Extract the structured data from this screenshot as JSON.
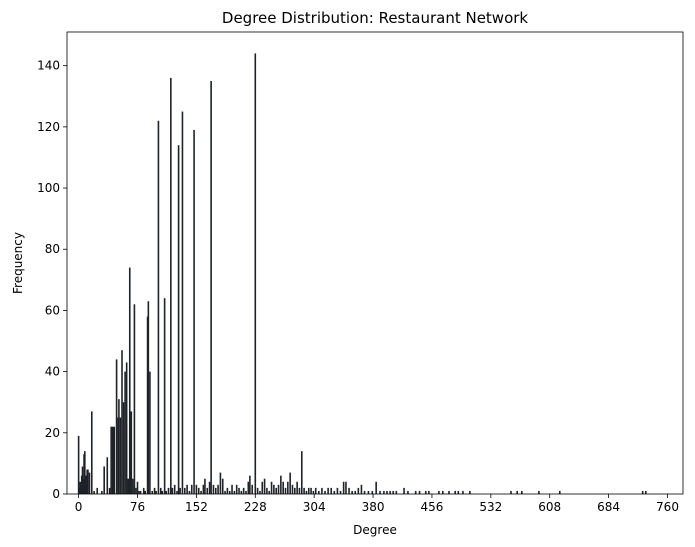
{
  "chart_data": {
    "type": "bar",
    "title": "Degree Distribution: Restaurant Network",
    "xlabel": "Degree",
    "ylabel": "Frequency",
    "xlim": [
      -15,
      780
    ],
    "ylim": [
      0,
      151
    ],
    "x_ticks": [
      0,
      76,
      152,
      228,
      304,
      380,
      456,
      532,
      608,
      684,
      760
    ],
    "y_ticks": [
      0,
      20,
      40,
      60,
      80,
      100,
      120,
      140
    ],
    "grid": false,
    "legend": "none",
    "bar_color": "#1f2328",
    "points": [
      {
        "x": 0,
        "y": 19
      },
      {
        "x": 1,
        "y": 2
      },
      {
        "x": 2,
        "y": 4
      },
      {
        "x": 3,
        "y": 3
      },
      {
        "x": 4,
        "y": 6
      },
      {
        "x": 5,
        "y": 9
      },
      {
        "x": 6,
        "y": 5
      },
      {
        "x": 7,
        "y": 13
      },
      {
        "x": 8,
        "y": 14
      },
      {
        "x": 9,
        "y": 6
      },
      {
        "x": 10,
        "y": 6
      },
      {
        "x": 11,
        "y": 8
      },
      {
        "x": 12,
        "y": 8
      },
      {
        "x": 14,
        "y": 7
      },
      {
        "x": 17,
        "y": 27
      },
      {
        "x": 20,
        "y": 1
      },
      {
        "x": 24,
        "y": 2
      },
      {
        "x": 30,
        "y": 1
      },
      {
        "x": 33,
        "y": 9
      },
      {
        "x": 37,
        "y": 12
      },
      {
        "x": 40,
        "y": 2
      },
      {
        "x": 42,
        "y": 22
      },
      {
        "x": 44,
        "y": 22
      },
      {
        "x": 46,
        "y": 22
      },
      {
        "x": 49,
        "y": 44
      },
      {
        "x": 51,
        "y": 25
      },
      {
        "x": 52,
        "y": 31
      },
      {
        "x": 54,
        "y": 25
      },
      {
        "x": 56,
        "y": 47
      },
      {
        "x": 58,
        "y": 30
      },
      {
        "x": 60,
        "y": 40
      },
      {
        "x": 62,
        "y": 43
      },
      {
        "x": 64,
        "y": 5
      },
      {
        "x": 66,
        "y": 74
      },
      {
        "x": 68,
        "y": 27
      },
      {
        "x": 70,
        "y": 5
      },
      {
        "x": 72,
        "y": 62
      },
      {
        "x": 74,
        "y": 2
      },
      {
        "x": 76,
        "y": 4
      },
      {
        "x": 78,
        "y": 1
      },
      {
        "x": 80,
        "y": 1
      },
      {
        "x": 84,
        "y": 2
      },
      {
        "x": 86,
        "y": 1
      },
      {
        "x": 89,
        "y": 58
      },
      {
        "x": 90,
        "y": 63
      },
      {
        "x": 92,
        "y": 40
      },
      {
        "x": 95,
        "y": 1
      },
      {
        "x": 98,
        "y": 2
      },
      {
        "x": 100,
        "y": 1
      },
      {
        "x": 103,
        "y": 122
      },
      {
        "x": 106,
        "y": 2
      },
      {
        "x": 108,
        "y": 1
      },
      {
        "x": 111,
        "y": 64
      },
      {
        "x": 113,
        "y": 1
      },
      {
        "x": 116,
        "y": 2
      },
      {
        "x": 119,
        "y": 136
      },
      {
        "x": 121,
        "y": 2
      },
      {
        "x": 124,
        "y": 3
      },
      {
        "x": 127,
        "y": 1
      },
      {
        "x": 129,
        "y": 114
      },
      {
        "x": 131,
        "y": 2
      },
      {
        "x": 134,
        "y": 125
      },
      {
        "x": 137,
        "y": 2
      },
      {
        "x": 140,
        "y": 3
      },
      {
        "x": 143,
        "y": 1
      },
      {
        "x": 146,
        "y": 3
      },
      {
        "x": 149,
        "y": 119
      },
      {
        "x": 152,
        "y": 3
      },
      {
        "x": 155,
        "y": 2
      },
      {
        "x": 158,
        "y": 1
      },
      {
        "x": 161,
        "y": 3
      },
      {
        "x": 163,
        "y": 5
      },
      {
        "x": 166,
        "y": 2
      },
      {
        "x": 169,
        "y": 4
      },
      {
        "x": 171,
        "y": 135
      },
      {
        "x": 174,
        "y": 3
      },
      {
        "x": 177,
        "y": 2
      },
      {
        "x": 180,
        "y": 3
      },
      {
        "x": 183,
        "y": 7
      },
      {
        "x": 186,
        "y": 5
      },
      {
        "x": 189,
        "y": 1
      },
      {
        "x": 192,
        "y": 2
      },
      {
        "x": 195,
        "y": 1
      },
      {
        "x": 198,
        "y": 3
      },
      {
        "x": 201,
        "y": 1
      },
      {
        "x": 204,
        "y": 3
      },
      {
        "x": 207,
        "y": 2
      },
      {
        "x": 210,
        "y": 1
      },
      {
        "x": 213,
        "y": 2
      },
      {
        "x": 216,
        "y": 1
      },
      {
        "x": 219,
        "y": 4
      },
      {
        "x": 221,
        "y": 6
      },
      {
        "x": 224,
        "y": 3
      },
      {
        "x": 228,
        "y": 144
      },
      {
        "x": 231,
        "y": 2
      },
      {
        "x": 234,
        "y": 1
      },
      {
        "x": 237,
        "y": 4
      },
      {
        "x": 240,
        "y": 5
      },
      {
        "x": 243,
        "y": 2
      },
      {
        "x": 246,
        "y": 1
      },
      {
        "x": 249,
        "y": 4
      },
      {
        "x": 252,
        "y": 3
      },
      {
        "x": 255,
        "y": 2
      },
      {
        "x": 258,
        "y": 3
      },
      {
        "x": 261,
        "y": 6
      },
      {
        "x": 264,
        "y": 4
      },
      {
        "x": 267,
        "y": 2
      },
      {
        "x": 270,
        "y": 4
      },
      {
        "x": 273,
        "y": 7
      },
      {
        "x": 276,
        "y": 3
      },
      {
        "x": 279,
        "y": 2
      },
      {
        "x": 282,
        "y": 4
      },
      {
        "x": 285,
        "y": 2
      },
      {
        "x": 288,
        "y": 14
      },
      {
        "x": 291,
        "y": 2
      },
      {
        "x": 294,
        "y": 1
      },
      {
        "x": 297,
        "y": 2
      },
      {
        "x": 300,
        "y": 2
      },
      {
        "x": 303,
        "y": 1
      },
      {
        "x": 306,
        "y": 2
      },
      {
        "x": 310,
        "y": 1
      },
      {
        "x": 314,
        "y": 2
      },
      {
        "x": 318,
        "y": 1
      },
      {
        "x": 322,
        "y": 2
      },
      {
        "x": 326,
        "y": 2
      },
      {
        "x": 330,
        "y": 1
      },
      {
        "x": 334,
        "y": 2
      },
      {
        "x": 338,
        "y": 1
      },
      {
        "x": 342,
        "y": 4
      },
      {
        "x": 345,
        "y": 4
      },
      {
        "x": 349,
        "y": 2
      },
      {
        "x": 353,
        "y": 1
      },
      {
        "x": 357,
        "y": 1
      },
      {
        "x": 361,
        "y": 2
      },
      {
        "x": 365,
        "y": 3
      },
      {
        "x": 369,
        "y": 1
      },
      {
        "x": 374,
        "y": 1
      },
      {
        "x": 379,
        "y": 1
      },
      {
        "x": 384,
        "y": 4
      },
      {
        "x": 389,
        "y": 1
      },
      {
        "x": 394,
        "y": 1
      },
      {
        "x": 398,
        "y": 1
      },
      {
        "x": 402,
        "y": 1
      },
      {
        "x": 406,
        "y": 1
      },
      {
        "x": 410,
        "y": 1
      },
      {
        "x": 420,
        "y": 2
      },
      {
        "x": 425,
        "y": 1
      },
      {
        "x": 435,
        "y": 1
      },
      {
        "x": 440,
        "y": 1
      },
      {
        "x": 448,
        "y": 1
      },
      {
        "x": 452,
        "y": 1
      },
      {
        "x": 465,
        "y": 1
      },
      {
        "x": 470,
        "y": 1
      },
      {
        "x": 478,
        "y": 1
      },
      {
        "x": 486,
        "y": 1
      },
      {
        "x": 490,
        "y": 1
      },
      {
        "x": 496,
        "y": 1
      },
      {
        "x": 505,
        "y": 1
      },
      {
        "x": 558,
        "y": 1
      },
      {
        "x": 566,
        "y": 1
      },
      {
        "x": 572,
        "y": 1
      },
      {
        "x": 594,
        "y": 1
      },
      {
        "x": 621,
        "y": 1
      },
      {
        "x": 728,
        "y": 1
      },
      {
        "x": 732,
        "y": 1
      }
    ]
  }
}
